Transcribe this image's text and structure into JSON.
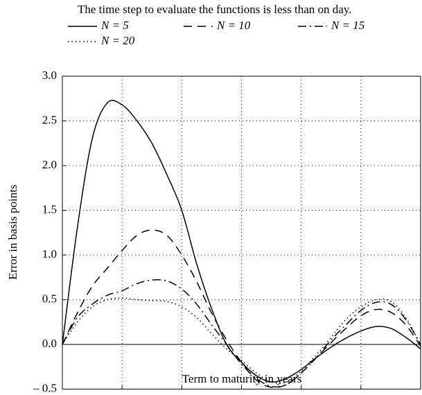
{
  "chart_data": {
    "type": "line",
    "title": "The time step to evaluate the functions is less than on day.",
    "xlabel": "Term to maturity in years",
    "ylabel": "Error in basis points",
    "x": [
      0,
      0.25,
      0.5,
      0.75,
      1,
      1.25,
      1.5,
      1.75,
      2,
      2.25,
      2.5,
      2.75,
      3,
      3.25,
      3.5,
      3.75,
      4,
      4.25,
      4.5,
      4.75,
      5,
      5.25,
      5.5,
      5.75,
      6
    ],
    "series": [
      {
        "name": "N = 5",
        "color": "#000000",
        "dash": "solid",
        "values": [
          0,
          1.3,
          2.3,
          2.7,
          2.68,
          2.5,
          2.25,
          1.9,
          1.5,
          0.9,
          0.4,
          0.0,
          -0.2,
          -0.35,
          -0.42,
          -0.38,
          -0.28,
          -0.15,
          -0.03,
          0.07,
          0.15,
          0.2,
          0.18,
          0.08,
          -0.05
        ]
      },
      {
        "name": "N = 10",
        "color": "#000000",
        "dash": "dashed",
        "values": [
          0,
          0.35,
          0.65,
          0.85,
          1.05,
          1.22,
          1.28,
          1.22,
          1.0,
          0.7,
          0.35,
          0.05,
          -0.2,
          -0.4,
          -0.48,
          -0.45,
          -0.32,
          -0.15,
          0.02,
          0.18,
          0.32,
          0.39,
          0.36,
          0.22,
          -0.02
        ]
      },
      {
        "name": "N = 15",
        "color": "#000000",
        "dash": "dashdot",
        "values": [
          0,
          0.3,
          0.45,
          0.55,
          0.6,
          0.68,
          0.72,
          0.71,
          0.62,
          0.45,
          0.22,
          0.0,
          -0.22,
          -0.38,
          -0.47,
          -0.45,
          -0.32,
          -0.15,
          0.05,
          0.22,
          0.38,
          0.47,
          0.45,
          0.28,
          0.0
        ]
      },
      {
        "name": "N = 20",
        "color": "#000000",
        "dash": "dotted",
        "values": [
          0,
          0.25,
          0.42,
          0.5,
          0.52,
          0.5,
          0.49,
          0.48,
          0.42,
          0.3,
          0.12,
          -0.05,
          -0.18,
          -0.32,
          -0.42,
          -0.42,
          -0.3,
          -0.12,
          0.08,
          0.28,
          0.42,
          0.5,
          0.48,
          0.3,
          0.0
        ]
      }
    ],
    "xlim": [
      0,
      6
    ],
    "xticks": [
      0,
      1,
      2,
      3,
      4,
      5
    ],
    "ylim": [
      -0.5,
      3.0
    ],
    "yticks": [
      {
        "value": -0.5,
        "label": "– 0.5"
      },
      {
        "value": 0,
        "label": "0.0"
      },
      {
        "value": 0.5,
        "label": "0.5"
      },
      {
        "value": 1,
        "label": "1.0"
      },
      {
        "value": 1.5,
        "label": "1.5"
      },
      {
        "value": 2,
        "label": "2.0"
      },
      {
        "value": 2.5,
        "label": "2.5"
      },
      {
        "value": 3,
        "label": "3.0"
      }
    ],
    "grid": true,
    "legend": "top"
  }
}
